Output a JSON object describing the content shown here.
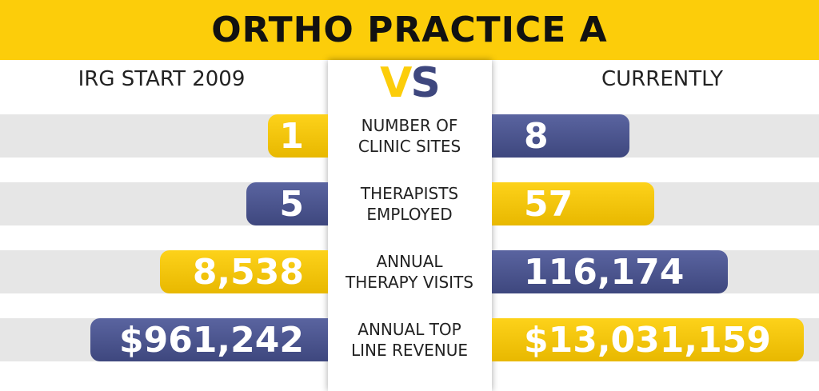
{
  "title": "ORTHO PRACTICE A",
  "left_header": "IRG START 2009",
  "vs": [
    "V",
    "S"
  ],
  "right_header": "CURRENTLY",
  "rows": [
    {
      "label": [
        "NUMBER OF",
        "CLINIC SITES"
      ],
      "left": "1",
      "right": "8"
    },
    {
      "label": [
        "THERAPISTS",
        "EMPLOYED"
      ],
      "left": "5",
      "right": "57"
    },
    {
      "label": [
        "ANNUAL",
        "THERAPY VISITS"
      ],
      "left": "8,538",
      "right": "116,174"
    },
    {
      "label": [
        "ANNUAL TOP",
        "LINE REVENUE"
      ],
      "left": "$961,242",
      "right": "$13,031,159"
    }
  ]
}
